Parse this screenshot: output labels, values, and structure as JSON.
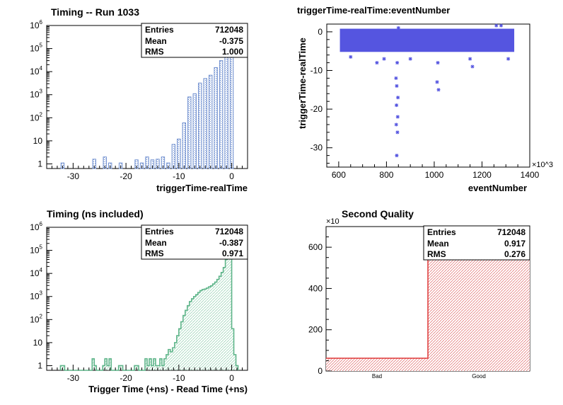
{
  "chart_data": [
    {
      "type": "bar",
      "id": "timing-run",
      "title": "Timing -- Run 1033",
      "xlabel": "triggerTime-realTime",
      "ylabel": "",
      "xlim": [
        -35,
        3
      ],
      "ylog": true,
      "ylim_log10": [
        -0.2,
        6
      ],
      "color": "#6f8fcf",
      "xticks": [
        -30,
        -20,
        -10,
        0
      ],
      "yticks_exp": [
        0,
        1,
        2,
        3,
        4,
        5,
        6
      ],
      "stats": {
        "entries_label": "Entries",
        "entries": "712048",
        "mean_label": "Mean",
        "mean": "-0.375",
        "rms_label": "RMS",
        "rms": "1.000"
      },
      "bins": [
        {
          "x": -32,
          "v": 1.1
        },
        {
          "x": -26,
          "v": 1.6
        },
        {
          "x": -24,
          "v": 2
        },
        {
          "x": -23,
          "v": 1.1
        },
        {
          "x": -21,
          "v": 1.1
        },
        {
          "x": -18,
          "v": 1.5
        },
        {
          "x": -17,
          "v": 1.1
        },
        {
          "x": -16,
          "v": 2
        },
        {
          "x": -15,
          "v": 1.5
        },
        {
          "x": -14,
          "v": 1.6
        },
        {
          "x": -13,
          "v": 2
        },
        {
          "x": -12,
          "v": 1.1
        },
        {
          "x": -11,
          "v": 7
        },
        {
          "x": -10,
          "v": 12
        },
        {
          "x": -9,
          "v": 60
        },
        {
          "x": -8,
          "v": 800
        },
        {
          "x": -7,
          "v": 1100
        },
        {
          "x": -6,
          "v": 3200
        },
        {
          "x": -5,
          "v": 5000
        },
        {
          "x": -4,
          "v": 7000
        },
        {
          "x": -3,
          "v": 15000
        },
        {
          "x": -2,
          "v": 30000
        },
        {
          "x": -1,
          "v": 80000
        },
        {
          "x": 0,
          "v": 500000
        }
      ]
    },
    {
      "type": "scatter",
      "id": "trigger-vs-event",
      "title": "triggerTime-realTime:eventNumber",
      "xlabel": "eventNumber",
      "ylabel": "triggerTime-realTime",
      "xlim": [
        550,
        1400
      ],
      "ylim": [
        -35,
        2
      ],
      "x_multiplier": "×10^3",
      "color": "#5555e0",
      "xticks": [
        600,
        800,
        1000,
        1200,
        1400
      ],
      "yticks": [
        0,
        -10,
        -20,
        -30
      ],
      "band": {
        "x_start": 605,
        "x_end": 1335,
        "y_top": 0.8,
        "y_bottom": -5.2
      },
      "points": [
        {
          "x": 850,
          "y": 1
        },
        {
          "x": 845,
          "y": -8
        },
        {
          "x": 840,
          "y": -12
        },
        {
          "x": 843,
          "y": -14
        },
        {
          "x": 848,
          "y": -17
        },
        {
          "x": 842,
          "y": -19
        },
        {
          "x": 847,
          "y": -22
        },
        {
          "x": 841,
          "y": -24
        },
        {
          "x": 846,
          "y": -26
        },
        {
          "x": 843,
          "y": -32
        },
        {
          "x": 1015,
          "y": -8
        },
        {
          "x": 1012,
          "y": -13
        },
        {
          "x": 1018,
          "y": -15
        },
        {
          "x": 1150,
          "y": -7
        },
        {
          "x": 1160,
          "y": -9
        },
        {
          "x": 790,
          "y": -7
        },
        {
          "x": 760,
          "y": -8
        },
        {
          "x": 900,
          "y": -7
        },
        {
          "x": 1310,
          "y": -7
        },
        {
          "x": 650,
          "y": -6.5
        },
        {
          "x": 1260,
          "y": 1.6
        },
        {
          "x": 1280,
          "y": 1.6
        }
      ]
    },
    {
      "type": "bar",
      "id": "timing-ns",
      "title": "Timing (ns included)",
      "xlabel": "Trigger Time (+ns) - Read Time (+ns)",
      "ylabel": "",
      "xlim": [
        -35,
        3
      ],
      "ylog": true,
      "ylim_log10": [
        -0.2,
        6
      ],
      "color": "#5fb58a",
      "xticks": [
        -30,
        -20,
        -10,
        0
      ],
      "yticks_exp": [
        0,
        1,
        2,
        3,
        4,
        5,
        6
      ],
      "stats": {
        "entries_label": "Entries",
        "entries": "712048",
        "mean_label": "Mean",
        "mean": "-0.387",
        "rms_label": "RMS",
        "rms": "0.971"
      },
      "hist_x": [
        -32.2,
        -31.8,
        -26.2,
        -25.8,
        -24.2,
        -23.8,
        -23.4,
        -23.0,
        -21.2,
        -20.8,
        -18.2,
        -17.8,
        -16.2,
        -15.8,
        -15.4,
        -15.0,
        -14.6,
        -14.2,
        -13.8,
        -13.4,
        -13.0,
        -12.6,
        -12.2,
        -11.8,
        -11.4,
        -11.0,
        -10.6,
        -10.2,
        -9.8,
        -9.4,
        -9.0,
        -8.6,
        -8.2,
        -7.8,
        -7.4,
        -7.0,
        -6.6,
        -6.2,
        -5.8,
        -5.4,
        -5.0,
        -4.6,
        -4.2,
        -3.8,
        -3.4,
        -3.0,
        -2.6,
        -2.2,
        -1.8,
        -1.4,
        -1.0,
        -0.6,
        -0.2,
        0.2,
        0.6,
        1.0
      ],
      "hist_v": [
        1,
        1,
        2,
        1,
        1,
        2,
        1,
        2,
        1,
        1,
        1,
        1,
        2,
        1,
        2,
        1,
        2,
        1,
        1,
        2,
        1,
        2,
        3,
        5,
        4,
        6,
        10,
        20,
        40,
        80,
        150,
        250,
        400,
        600,
        800,
        1000,
        1200,
        1500,
        1800,
        2000,
        2100,
        2300,
        2600,
        2900,
        3500,
        4200,
        5500,
        7500,
        11000,
        18000,
        40000,
        120000,
        550000,
        40,
        3,
        1
      ]
    },
    {
      "type": "bar",
      "id": "second-quality",
      "title": "Second Quality",
      "xlabel": "",
      "ylabel": "",
      "categories": [
        "Bad",
        "Good"
      ],
      "values": [
        62,
        650
      ],
      "ylim": [
        0,
        700
      ],
      "y_multiplier": "×10",
      "color": "#e04444",
      "yticks": [
        0,
        200,
        400,
        600
      ],
      "stats": {
        "entries_label": "Entries",
        "entries": "712048",
        "mean_label": "Mean",
        "mean": "0.917",
        "rms_label": "RMS",
        "rms": "0.276"
      }
    }
  ]
}
